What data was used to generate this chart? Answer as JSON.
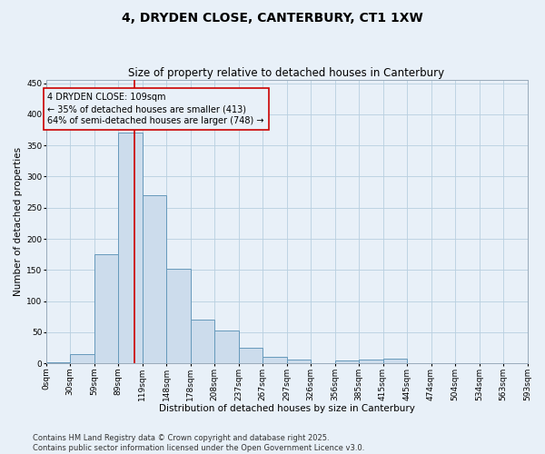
{
  "title_line1": "4, DRYDEN CLOSE, CANTERBURY, CT1 1XW",
  "title_line2": "Size of property relative to detached houses in Canterbury",
  "xlabel": "Distribution of detached houses by size in Canterbury",
  "ylabel": "Number of detached properties",
  "bar_edges": [
    0,
    29.5,
    59,
    88.5,
    118,
    147.5,
    177,
    206.5,
    236,
    265.5,
    295,
    324.5,
    354,
    383.5,
    413,
    442.5,
    472,
    501.5,
    531,
    560.5,
    590
  ],
  "bar_heights": [
    2,
    15,
    175,
    370,
    270,
    152,
    70,
    53,
    25,
    10,
    6,
    1,
    5,
    6,
    8,
    1,
    0,
    0,
    0,
    1
  ],
  "tick_labels": [
    "0sqm",
    "30sqm",
    "59sqm",
    "89sqm",
    "119sqm",
    "148sqm",
    "178sqm",
    "208sqm",
    "237sqm",
    "267sqm",
    "297sqm",
    "326sqm",
    "356sqm",
    "385sqm",
    "415sqm",
    "445sqm",
    "474sqm",
    "504sqm",
    "534sqm",
    "563sqm",
    "593sqm"
  ],
  "bar_color": "#ccdcec",
  "bar_edge_color": "#6699bb",
  "vline_x": 109,
  "vline_color": "#cc0000",
  "annotation_text": "4 DRYDEN CLOSE: 109sqm\n← 35% of detached houses are smaller (413)\n64% of semi-detached houses are larger (748) →",
  "ylim": [
    0,
    455
  ],
  "yticks": [
    0,
    50,
    100,
    150,
    200,
    250,
    300,
    350,
    400,
    450
  ],
  "xlim": [
    0,
    590
  ],
  "grid_color": "#b8cfe0",
  "background_color": "#e8f0f8",
  "footnote": "Contains HM Land Registry data © Crown copyright and database right 2025.\nContains public sector information licensed under the Open Government Licence v3.0.",
  "title_fontsize": 10,
  "subtitle_fontsize": 8.5,
  "axis_label_fontsize": 7.5,
  "tick_fontsize": 6.5,
  "annotation_fontsize": 7,
  "footnote_fontsize": 6
}
